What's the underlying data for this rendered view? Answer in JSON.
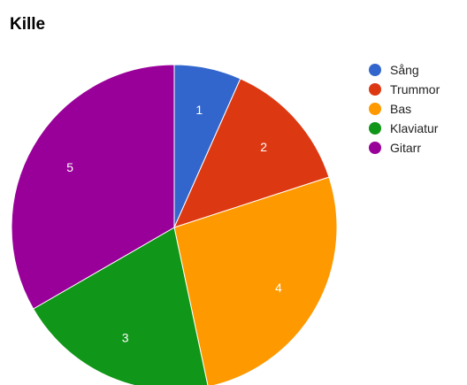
{
  "chart_data": {
    "type": "pie",
    "title": "Kille",
    "categories": [
      "Sång",
      "Trummor",
      "Bas",
      "Klaviatur",
      "Gitarr"
    ],
    "values": [
      1,
      2,
      4,
      3,
      5
    ],
    "colors": [
      "#3366cc",
      "#dc3912",
      "#ff9900",
      "#109618",
      "#990099"
    ],
    "legend": "right",
    "slice_labels": "value"
  }
}
